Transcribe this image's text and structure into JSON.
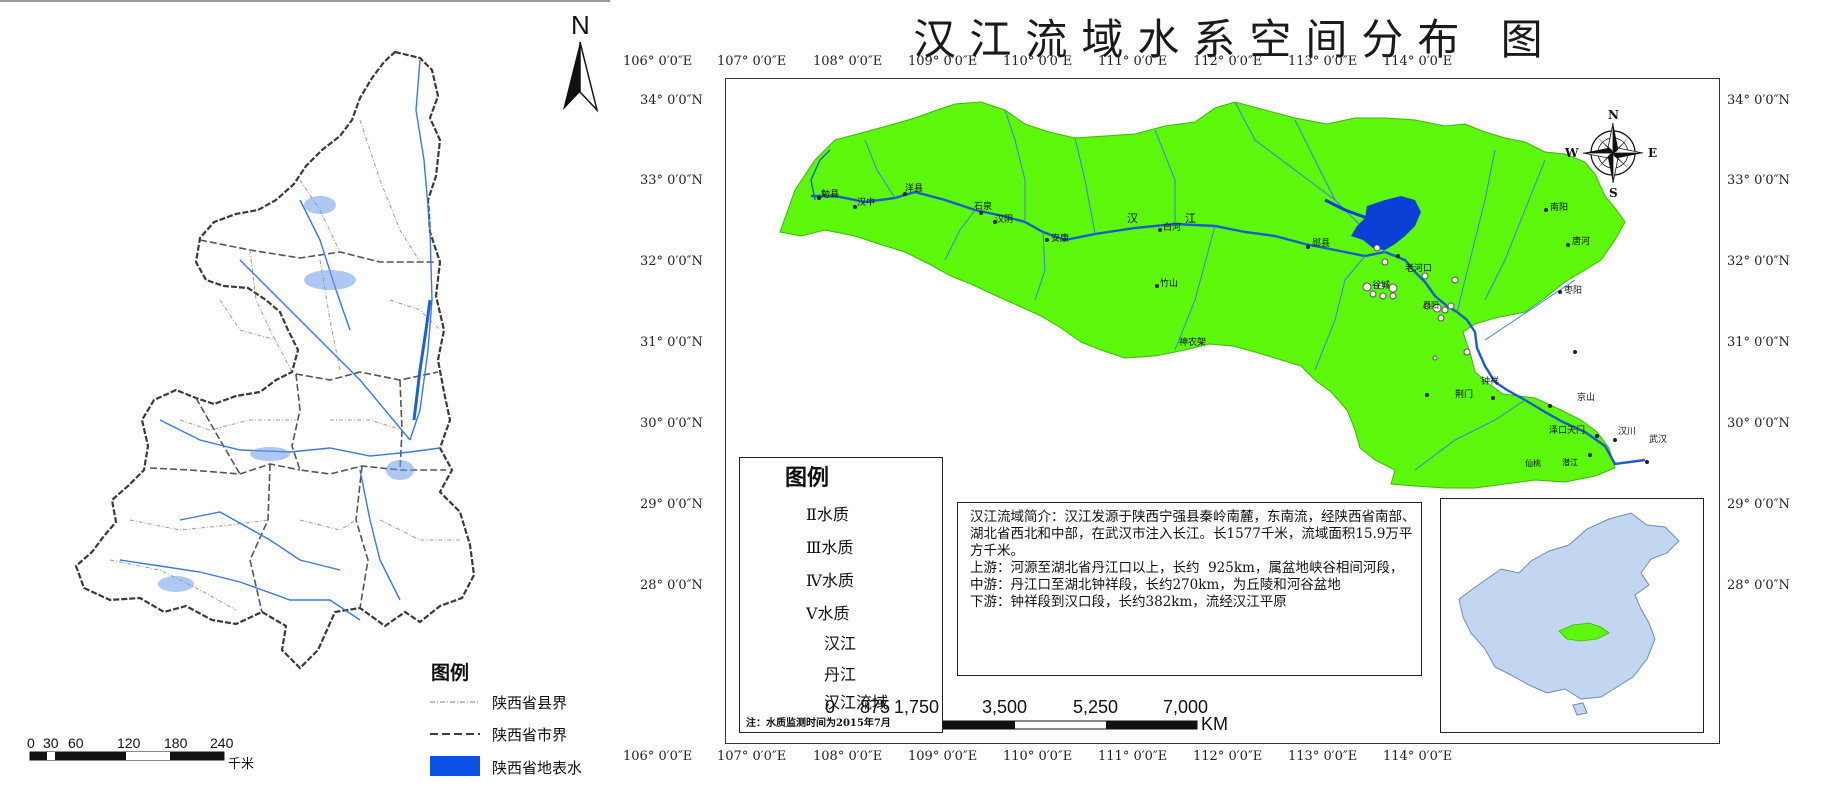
{
  "left_map": {
    "north_label": "N",
    "legend_title": "图例",
    "legend_items": [
      {
        "label": "陕西省县界",
        "style": "dash-dot-gray"
      },
      {
        "label": "陕西省市界",
        "style": "dash-dark"
      },
      {
        "label": "陕西省地表水",
        "style": "fill",
        "color": "#0a53e6"
      }
    ],
    "scale_ticks": [
      "0",
      "30",
      "60",
      "120",
      "180",
      "240"
    ],
    "scale_unit": "千米"
  },
  "right_map": {
    "title": "汉江流域水系空间分布 图",
    "top_longitudes": [
      "106° 0′0″E",
      "107° 0′0″E",
      "108° 0′0″E",
      "109° 0′0″E",
      "110° 0′0″E",
      "111° 0′0″E",
      "112° 0′0″E",
      "113° 0′0″E",
      "114° 0′0″E"
    ],
    "bottom_longitudes": [
      "106° 0′0″E",
      "107° 0′0″E",
      "108° 0′0″E",
      "109° 0′0″E",
      "110° 0′0″E",
      "111° 0′0″E",
      "112° 0′0″E",
      "113° 0′0″E",
      "114° 0′0″E"
    ],
    "latitudes": [
      "34° 0′0″N",
      "33° 0′0″N",
      "32° 0′0″N",
      "31° 0′0″N",
      "30° 0′0″N",
      "29° 0′0″N",
      "28° 0′0″N"
    ],
    "compass": {
      "n": "N",
      "s": "S",
      "e": "E",
      "w": "W"
    },
    "place_labels": [
      "勉县",
      "汉中",
      "洋县",
      "石泉",
      "汉阴",
      "安康",
      "汉",
      "江",
      "白河",
      "郧县",
      "老河口",
      "南阳",
      "唐河",
      "竹山",
      "谷城",
      "襄阳",
      "枣阳",
      "神农架",
      "荆门",
      "钟祥",
      "京山",
      "潜江",
      "仙桃",
      "汉川",
      "武汉",
      "泽口天门"
    ],
    "legend": {
      "title": "图例",
      "items": [
        {
          "label": "Ⅱ水质",
          "kind": "circle-large"
        },
        {
          "label": "Ⅲ水质",
          "kind": "circle-medium"
        },
        {
          "label": "Ⅳ水质",
          "kind": "circle-small"
        },
        {
          "label": "Ⅴ水质",
          "kind": "circle-tiny"
        },
        {
          "label": "汉江",
          "kind": "line-main"
        },
        {
          "label": "丹江",
          "kind": "line-thin"
        },
        {
          "label": "汉江流域",
          "kind": "fill"
        }
      ],
      "note": "注：水质监测时间为2015年7月"
    },
    "description": "汉江流域简介：汉江发源于陕西宁强县秦岭南麓，东南流，经陕西省南部、湖北省西北和中部，在武汉市注入长江。长1577千米，流域面积15.9万平方千米。\n上游：河源至湖北省丹江口以上，长约  925km，属盆地峡谷相间河段，\n中游：丹江口至湖北钟祥段，长约270km，为丘陵和河谷盆地\n下游：钟祥段到汉口段，长约382km，流经汉江平原",
    "scale_ticks": [
      "0",
      "875",
      "1,750",
      "3,500",
      "5,250",
      "7,000"
    ],
    "scale_unit": "KM"
  },
  "colors": {
    "basin_fill": "#5cf70a",
    "river": "#1a5ccf",
    "reservoir": "#0b3fd6",
    "china_fill": "#c2d6ef",
    "highlight": "#5cf70a"
  }
}
